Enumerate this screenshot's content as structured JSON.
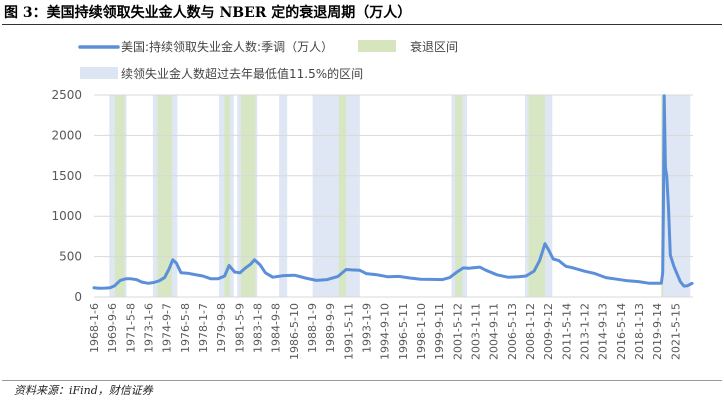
{
  "figure": {
    "title": "图 3：美国持续领取失业金人数与 NBER 定的衰退周期（万人）",
    "source": "资料来源：iFind，财信证券"
  },
  "chart_data": {
    "type": "line",
    "series": [
      {
        "name": "美国:持续领取失业金人数:季调（万人）",
        "color": "#5B8FD9",
        "points": [
          [
            "1968-01-06",
            115
          ],
          [
            "1968-07-01",
            108
          ],
          [
            "1969-01-01",
            110
          ],
          [
            "1969-07-01",
            115
          ],
          [
            "1969-12-01",
            140
          ],
          [
            "1970-06-01",
            205
          ],
          [
            "1970-12-01",
            225
          ],
          [
            "1971-06-01",
            225
          ],
          [
            "1971-12-01",
            215
          ],
          [
            "1972-06-01",
            185
          ],
          [
            "1973-01-01",
            170
          ],
          [
            "1973-07-01",
            180
          ],
          [
            "1974-01-01",
            200
          ],
          [
            "1974-07-01",
            240
          ],
          [
            "1974-12-01",
            350
          ],
          [
            "1975-04-01",
            460
          ],
          [
            "1975-08-01",
            420
          ],
          [
            "1976-01-01",
            300
          ],
          [
            "1976-08-01",
            295
          ],
          [
            "1977-03-01",
            280
          ],
          [
            "1978-01-01",
            260
          ],
          [
            "1978-10-01",
            225
          ],
          [
            "1979-06-01",
            225
          ],
          [
            "1980-01-01",
            260
          ],
          [
            "1980-06-01",
            390
          ],
          [
            "1980-12-01",
            310
          ],
          [
            "1981-06-01",
            300
          ],
          [
            "1981-12-01",
            360
          ],
          [
            "1982-06-01",
            410
          ],
          [
            "1982-10-01",
            460
          ],
          [
            "1983-04-01",
            400
          ],
          [
            "1983-10-01",
            300
          ],
          [
            "1984-06-01",
            245
          ],
          [
            "1985-06-01",
            265
          ],
          [
            "1986-06-01",
            270
          ],
          [
            "1987-06-01",
            235
          ],
          [
            "1988-06-01",
            205
          ],
          [
            "1989-06-01",
            215
          ],
          [
            "1990-06-01",
            255
          ],
          [
            "1991-03-01",
            340
          ],
          [
            "1991-09-01",
            335
          ],
          [
            "1992-06-01",
            330
          ],
          [
            "1993-01-01",
            290
          ],
          [
            "1994-01-01",
            275
          ],
          [
            "1995-01-01",
            250
          ],
          [
            "1996-01-01",
            255
          ],
          [
            "1997-01-01",
            235
          ],
          [
            "1998-01-01",
            220
          ],
          [
            "1999-01-01",
            218
          ],
          [
            "2000-01-01",
            215
          ],
          [
            "2000-09-01",
            240
          ],
          [
            "2001-05-01",
            310
          ],
          [
            "2001-12-01",
            360
          ],
          [
            "2002-06-01",
            355
          ],
          [
            "2003-06-01",
            370
          ],
          [
            "2004-01-01",
            330
          ],
          [
            "2005-01-01",
            275
          ],
          [
            "2006-01-01",
            245
          ],
          [
            "2007-01-01",
            250
          ],
          [
            "2007-09-01",
            260
          ],
          [
            "2008-06-01",
            320
          ],
          [
            "2008-12-01",
            450
          ],
          [
            "2009-06-01",
            660
          ],
          [
            "2009-10-01",
            580
          ],
          [
            "2010-03-01",
            470
          ],
          [
            "2010-09-01",
            450
          ],
          [
            "2011-05-01",
            380
          ],
          [
            "2012-01-01",
            360
          ],
          [
            "2013-01-01",
            320
          ],
          [
            "2014-01-01",
            290
          ],
          [
            "2015-01-01",
            240
          ],
          [
            "2016-01-01",
            220
          ],
          [
            "2017-01-01",
            200
          ],
          [
            "2018-01-01",
            190
          ],
          [
            "2019-01-01",
            170
          ],
          [
            "2020-02-01",
            170
          ],
          [
            "2020-03-21",
            300
          ],
          [
            "2020-04-11",
            1100
          ],
          [
            "2020-05-09",
            2490
          ],
          [
            "2020-06-20",
            1600
          ],
          [
            "2020-08-01",
            1500
          ],
          [
            "2020-10-01",
            1100
          ],
          [
            "2020-12-01",
            520
          ],
          [
            "2021-04-01",
            380
          ],
          [
            "2021-08-01",
            270
          ],
          [
            "2021-11-01",
            190
          ],
          [
            "2022-03-01",
            135
          ],
          [
            "2022-07-01",
            140
          ],
          [
            "2022-12-01",
            168
          ]
        ]
      }
    ],
    "shaded_series": [
      {
        "name": "衰退区间",
        "color": "#D6E5BE",
        "ranges": [
          [
            "1969-12-01",
            "1970-11-01"
          ],
          [
            "1973-11-01",
            "1975-03-01"
          ],
          [
            "1980-01-01",
            "1980-07-01"
          ],
          [
            "1981-07-01",
            "1982-11-01"
          ],
          [
            "1990-07-01",
            "1991-03-01"
          ],
          [
            "2001-03-01",
            "2001-11-01"
          ],
          [
            "2007-12-01",
            "2009-06-01"
          ],
          [
            "2020-02-01",
            "2020-04-01"
          ]
        ]
      },
      {
        "name": "续领失业金人数超过去年最低值11.5%的区间",
        "color": "#DCE6F2",
        "ranges": [
          [
            "1969-06-01",
            "1971-01-01"
          ],
          [
            "1973-06-01",
            "1975-09-01"
          ],
          [
            "1979-07-01",
            "1980-11-01"
          ],
          [
            "1981-03-01",
            "1983-01-01"
          ],
          [
            "1985-01-01",
            "1985-10-01"
          ],
          [
            "1988-02-01",
            "1992-06-01"
          ],
          [
            "2000-11-01",
            "2002-04-01"
          ],
          [
            "2007-08-01",
            "2010-02-01"
          ],
          [
            "2020-03-14",
            "2022-10-01"
          ]
        ]
      }
    ],
    "x_ticks": [
      "1968-1-6",
      "1969-9-6",
      "1971-5-8",
      "1973-1-6",
      "1974-9-7",
      "1976-5-8",
      "1978-1-7",
      "1979-9-8",
      "1981-5-9",
      "1983-1-8",
      "1984-9-8",
      "1986-5-10",
      "1988-1-9",
      "1989-9-9",
      "1991-5-11",
      "1993-1-9",
      "1994-9-10",
      "1996-5-11",
      "1998-1-10",
      "1999-9-11",
      "2001-5-12",
      "2003-1-11",
      "2004-9-11",
      "2006-5-13",
      "2008-1-12",
      "2009-9-12",
      "2011-5-14",
      "2013-1-12",
      "2014-9-13",
      "2016-5-14",
      "2018-1-13",
      "2019-9-14",
      "2021-5-15"
    ],
    "y_ticks": [
      "0",
      "500",
      "1000",
      "1500",
      "2000",
      "2500"
    ],
    "ylim": [
      0,
      2500
    ],
    "xlim": [
      "1968-01-06",
      "2022-12-31"
    ],
    "grid": "horizontal",
    "legend": "top"
  }
}
